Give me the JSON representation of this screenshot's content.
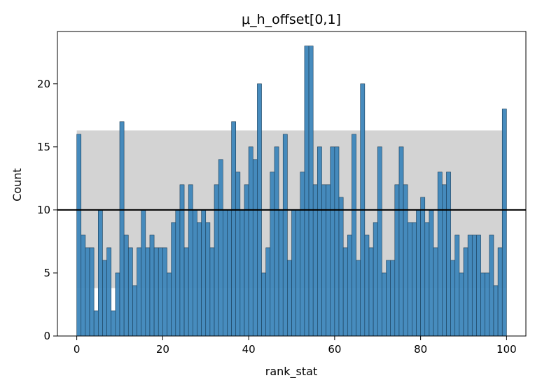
{
  "chart_data": {
    "type": "bar",
    "title": "μ_h_offset[0,1]",
    "xlabel": "rank_stat",
    "ylabel": "Count",
    "xlim": [
      -4.5,
      104.5
    ],
    "ylim": [
      0,
      24.15
    ],
    "x_ticks": [
      "0",
      "20",
      "40",
      "60",
      "80",
      "100"
    ],
    "y_ticks": [
      "0",
      "5",
      "10",
      "15",
      "20"
    ],
    "bin_start": 0,
    "bin_width": 1,
    "counts": [
      16,
      8,
      7,
      7,
      2,
      10,
      6,
      7,
      2,
      5,
      17,
      8,
      7,
      4,
      7,
      10,
      7,
      8,
      7,
      7,
      7,
      5,
      9,
      10,
      12,
      7,
      12,
      10,
      9,
      10,
      9,
      7,
      12,
      14,
      10,
      10,
      17,
      13,
      10,
      12,
      15,
      14,
      20,
      5,
      7,
      13,
      15,
      10,
      16,
      6,
      10,
      10,
      13,
      23,
      23,
      12,
      15,
      12,
      12,
      15,
      15,
      11,
      7,
      8,
      16,
      6,
      20,
      8,
      7,
      9,
      15,
      5,
      6,
      6,
      12,
      15,
      12,
      9,
      9,
      10,
      11,
      9,
      10,
      7,
      13,
      12,
      13,
      6,
      8,
      5,
      7,
      8,
      8,
      8,
      5,
      5,
      8,
      4,
      7,
      18
    ],
    "reference_line": 10,
    "band": [
      3.8,
      16.3
    ],
    "grid": false,
    "colors": {
      "bar": "#3d86bb",
      "bar_edge": "#1a3d57",
      "band": "#d3d3d3",
      "reference_line": "#000000"
    }
  }
}
